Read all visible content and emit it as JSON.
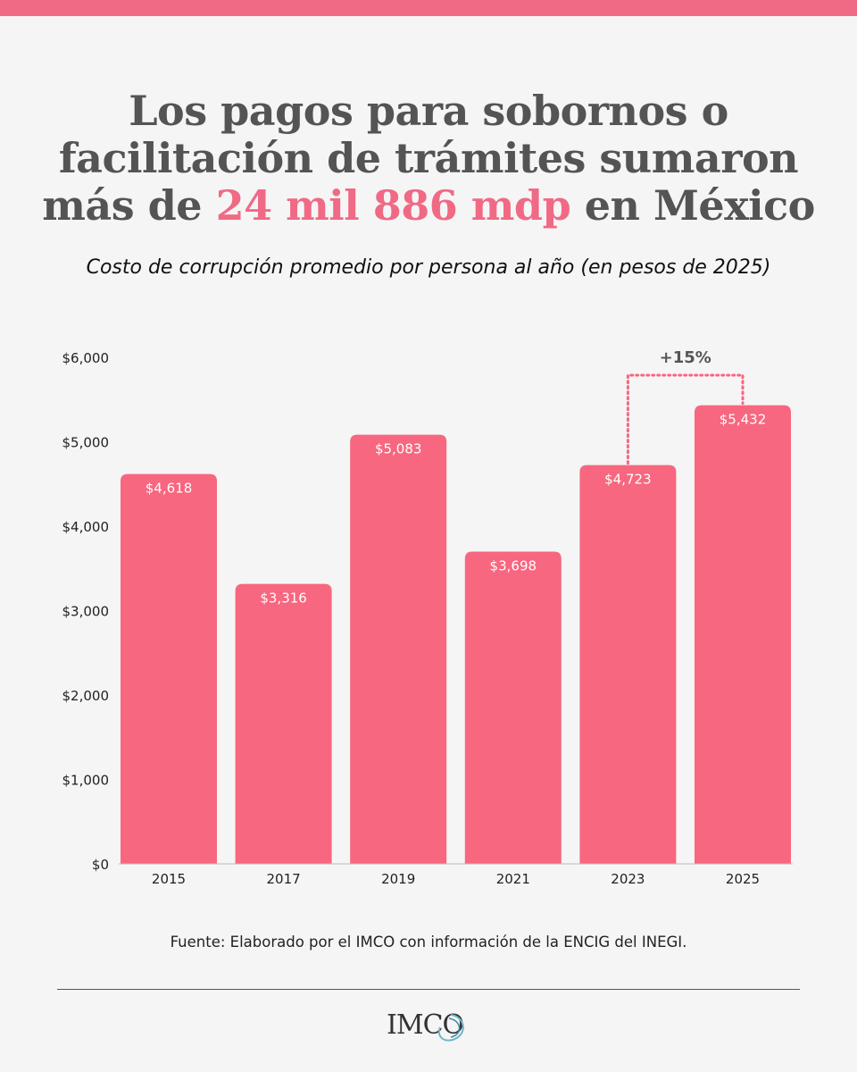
{
  "header": {
    "title_before": "Los pagos para sobornos o facilitación de trámites sumaron más de ",
    "title_highlight": "24 mil 886 mdp",
    "title_after": " en México",
    "highlight_color": "#f06a85",
    "subtitle": "Costo de corrupción promedio por persona al año (en pesos de 2025)"
  },
  "chart_data": {
    "type": "bar",
    "categories": [
      "2015",
      "2017",
      "2019",
      "2021",
      "2023",
      "2025"
    ],
    "values": [
      4618,
      3316,
      5083,
      3698,
      4723,
      5432
    ],
    "value_labels": [
      "$4,618",
      "$3,316",
      "$5,083",
      "$3,698",
      "$4,723",
      "$5,432"
    ],
    "y_ticks": [
      0,
      1000,
      2000,
      3000,
      4000,
      5000,
      6000
    ],
    "y_tick_labels": [
      "$0",
      "$1,000",
      "$2,000",
      "$3,000",
      "$4,000",
      "$5,000",
      "$6,000"
    ],
    "ylim": [
      0,
      6000
    ],
    "grid": false,
    "bar_color": "#f7677f",
    "annotation": {
      "text": "+15%",
      "from": "2023",
      "to": "2025"
    }
  },
  "footer": {
    "source": "Fuente: Elaborado por el IMCO con información de la ENCIG del INEGI.",
    "logo_text": "IMCO"
  }
}
